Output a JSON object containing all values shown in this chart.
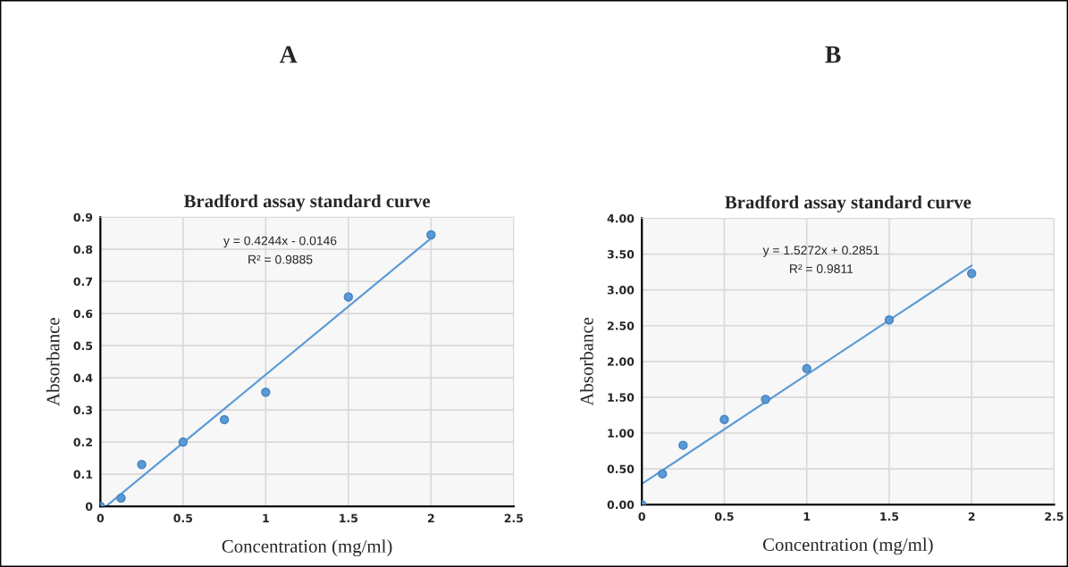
{
  "chart_data": [
    {
      "type": "scatter",
      "title": "Bradford assay standard curve",
      "xlabel": "Concentration (mg/ml)",
      "ylabel": "Absorbance",
      "annotations": [
        "A",
        "y = 0.4244x - 0.0146",
        "R² = 0.9885"
      ],
      "x": [
        0,
        0.125,
        0.25,
        0.5,
        0.75,
        1,
        1.5,
        2
      ],
      "series": [
        {
          "color": "#5b9bd5",
          "values": [
            0,
            0.026,
            0.13,
            0.2,
            0.27,
            0.355,
            0.652,
            0.845
          ],
          "marker": "circle"
        },
        {
          "type": "line",
          "color": "#5b9bd5",
          "x": [
            0.034,
            2
          ],
          "values": [
            0,
            0.834
          ],
          "marker": "none"
        }
      ],
      "xlim": [
        0,
        2.5
      ],
      "xticks": [
        0,
        0.5,
        1,
        1.5,
        2,
        2.5
      ],
      "ylim": [
        0,
        0.9
      ],
      "yticks": [
        0,
        0.1,
        0.2,
        0.3,
        0.4,
        0.5,
        0.6,
        0.7,
        0.8,
        0.9
      ],
      "grid": true,
      "legend": false
    },
    {
      "type": "scatter",
      "title": "Bradford assay standard curve",
      "xlabel": "Concentration (mg/ml)",
      "ylabel": "Absorbance",
      "annotations": [
        "B",
        "y = 1.5272x + 0.2851",
        "R² = 0.9811"
      ],
      "x": [
        0,
        0.125,
        0.25,
        0.5,
        0.75,
        1,
        1.5,
        2
      ],
      "series": [
        {
          "color": "#5b9bd5",
          "values": [
            0,
            0.43,
            0.83,
            1.19,
            1.47,
            1.9,
            2.58,
            3.23
          ],
          "marker": "circle"
        },
        {
          "type": "line",
          "color": "#5b9bd5",
          "x": [
            0,
            2
          ],
          "values": [
            0.29,
            3.34
          ],
          "marker": "none"
        }
      ],
      "xlim": [
        0,
        2.5
      ],
      "xticks": [
        0,
        0.5,
        1,
        1.5,
        2,
        2.5
      ],
      "ylim": [
        0,
        4
      ],
      "yticks": [
        {
          "value": 0,
          "label": "0.00"
        },
        {
          "value": 0.5,
          "label": "0.50"
        },
        {
          "value": 1,
          "label": "1.00"
        },
        {
          "value": 1.5,
          "label": "1.50"
        },
        {
          "value": 2,
          "label": "2.00"
        },
        {
          "value": 2.5,
          "label": "2.50"
        },
        {
          "value": 3,
          "label": "3.00"
        },
        {
          "value": 3.5,
          "label": "3.50"
        },
        {
          "value": 4,
          "label": "4.00"
        }
      ],
      "grid": true,
      "legend": false
    }
  ]
}
